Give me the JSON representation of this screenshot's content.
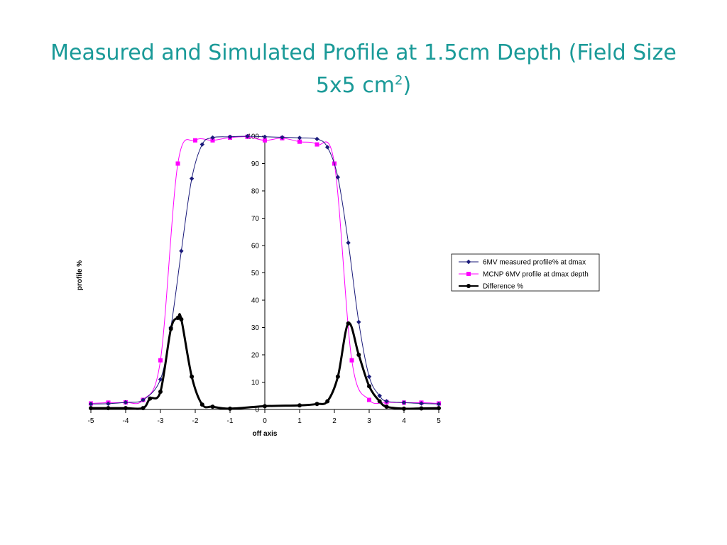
{
  "slide": {
    "title_main": "Measured and Simulated Profile at 1.5cm Depth (Field Size 5x5 cm",
    "title_sup": "2",
    "title_end": ")"
  },
  "chart_data": {
    "type": "line",
    "title": "",
    "xlabel": "off axis",
    "ylabel": "profile %",
    "xlim": [
      -5,
      5
    ],
    "ylim": [
      0,
      100
    ],
    "x_ticks": [
      "-5",
      "-4",
      "-3",
      "-2",
      "-1",
      "0",
      "1",
      "2",
      "3",
      "4",
      "5"
    ],
    "y_ticks": [
      "0",
      "10",
      "20",
      "30",
      "40",
      "50",
      "60",
      "70",
      "80",
      "90",
      "100"
    ],
    "grid": false,
    "legend": "right",
    "series": [
      {
        "name": "6MV measured profile% at dmax",
        "color": "#1a1a7a",
        "marker": "diamond",
        "x": [
          -5.0,
          -4.5,
          -4.0,
          -3.5,
          -3.0,
          -2.7,
          -2.4,
          -2.1,
          -1.8,
          -1.5,
          -1.0,
          -0.5,
          0.0,
          0.5,
          1.0,
          1.5,
          1.8,
          2.1,
          2.4,
          2.7,
          3.0,
          3.3,
          3.5,
          4.0,
          4.5,
          5.0
        ],
        "y": [
          2.0,
          2.1,
          2.6,
          3.5,
          11.0,
          30.0,
          58.0,
          84.5,
          97.0,
          99.5,
          99.8,
          100.0,
          99.8,
          99.6,
          99.4,
          99.0,
          96.0,
          85.0,
          61.0,
          32.0,
          12.0,
          5.0,
          3.0,
          2.5,
          2.2,
          2.0
        ]
      },
      {
        "name": "MCNP 6MV profile at dmax depth",
        "color": "#ff00ff",
        "marker": "square",
        "x": [
          -5.0,
          -4.5,
          -4.0,
          -3.5,
          -3.0,
          -2.5,
          -2.0,
          -1.5,
          -1.0,
          -0.5,
          0.0,
          0.5,
          1.0,
          1.5,
          2.0,
          2.5,
          3.0,
          3.5,
          4.0,
          4.5,
          5.0
        ],
        "y": [
          2.2,
          2.5,
          2.6,
          3.5,
          18.0,
          90.0,
          98.5,
          98.5,
          99.5,
          99.8,
          98.5,
          99.3,
          98.0,
          97.0,
          90.0,
          18.0,
          3.5,
          2.7,
          2.5,
          2.5,
          2.2
        ]
      },
      {
        "name": "Difference  %",
        "color": "#000000",
        "marker": "circle",
        "x": [
          -5.0,
          -4.5,
          -4.0,
          -3.5,
          -3.3,
          -3.0,
          -2.7,
          -2.5,
          -2.4,
          -2.1,
          -1.8,
          -1.5,
          -1.0,
          0.0,
          1.0,
          1.5,
          1.8,
          2.1,
          2.4,
          2.7,
          3.0,
          3.3,
          3.5,
          4.0,
          4.5,
          5.0
        ],
        "y": [
          0.5,
          0.5,
          0.5,
          0.5,
          4.0,
          6.5,
          29.5,
          33.5,
          33.0,
          12.0,
          1.8,
          1.0,
          0.3,
          1.2,
          1.5,
          2.0,
          3.0,
          12.0,
          31.5,
          20.0,
          8.5,
          3.0,
          1.0,
          0.3,
          0.4,
          0.5
        ]
      }
    ]
  }
}
